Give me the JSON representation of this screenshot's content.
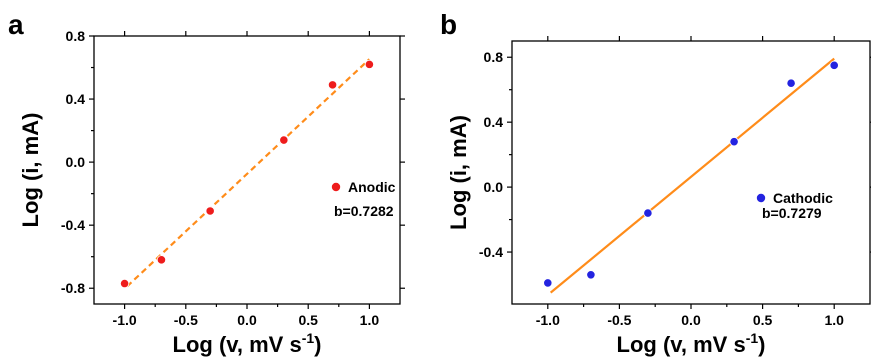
{
  "chart_data": [
    {
      "type": "scatter",
      "panel_label": "a",
      "xlabel_main": "Log (v, mV s",
      "xlabel_sup": "-1",
      "xlabel_end": ")",
      "ylabel": "Log (i, mA)",
      "xlim": [
        -1.25,
        1.25
      ],
      "ylim": [
        -0.9,
        0.8
      ],
      "xticks": [
        -1.0,
        -0.5,
        0.0,
        0.5,
        1.0
      ],
      "xtick_labels": [
        "-1.0",
        "-0.5",
        "0.0",
        "0.5",
        "1.0"
      ],
      "yticks": [
        -0.8,
        -0.4,
        0.0,
        0.4,
        0.8
      ],
      "ytick_labels": [
        "-0.8",
        "-0.4",
        "0.0",
        "0.4",
        "0.8"
      ],
      "series": [
        {
          "name": "Anodic",
          "x": [
            -1.0,
            -0.699,
            -0.301,
            0.301,
            0.699,
            1.0
          ],
          "y": [
            -0.77,
            -0.62,
            -0.31,
            0.14,
            0.49,
            0.62
          ],
          "color": "#ee1c1c"
        }
      ],
      "fit": {
        "slope": 0.7282,
        "x_range": [
          -0.98,
          1.0
        ],
        "style": "dashed",
        "color": "#ff8c1a"
      },
      "annotation": "b=0.7282",
      "legend_position": "right"
    },
    {
      "type": "scatter",
      "panel_label": "b",
      "xlabel_main": "Log (v, mV s",
      "xlabel_sup": "-1",
      "xlabel_end": ")",
      "ylabel": "Log (i, mA)",
      "xlim": [
        -1.25,
        1.25
      ],
      "ylim": [
        -0.72,
        0.9
      ],
      "xticks": [
        -1.0,
        -0.5,
        0.0,
        0.5,
        1.0
      ],
      "xtick_labels": [
        "-1.0",
        "-0.5",
        "0.0",
        "0.5",
        "1.0"
      ],
      "yticks": [
        -0.4,
        0.0,
        0.4,
        0.8
      ],
      "ytick_labels": [
        "-0.4",
        "0.0",
        "0.4",
        "0.8"
      ],
      "series": [
        {
          "name": "Cathodic",
          "x": [
            -1.0,
            -0.699,
            -0.301,
            0.301,
            0.699,
            1.0
          ],
          "y": [
            -0.59,
            -0.54,
            -0.16,
            0.28,
            0.64,
            0.75
          ],
          "color": "#2323e0"
        }
      ],
      "fit": {
        "slope": 0.7279,
        "x_range": [
          -0.98,
          1.0
        ],
        "style": "solid",
        "color": "#ff8c1a"
      },
      "annotation": "b=0.7279",
      "legend_position": "right"
    }
  ]
}
